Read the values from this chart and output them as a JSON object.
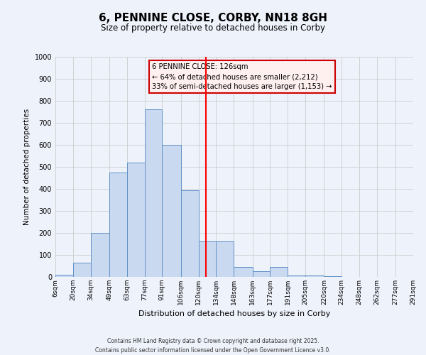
{
  "title": "6, PENNINE CLOSE, CORBY, NN18 8GH",
  "subtitle": "Size of property relative to detached houses in Corby",
  "xlabel": "Distribution of detached houses by size in Corby",
  "ylabel": "Number of detached properties",
  "bin_edges": [
    6,
    20,
    34,
    49,
    63,
    77,
    91,
    106,
    120,
    134,
    148,
    163,
    177,
    191,
    205,
    220,
    234,
    248,
    262,
    277,
    291
  ],
  "bar_heights": [
    10,
    65,
    200,
    475,
    520,
    760,
    600,
    395,
    160,
    160,
    45,
    25,
    45,
    5,
    5,
    2,
    0,
    0,
    0,
    0
  ],
  "bar_facecolor": "#c9d9f0",
  "bar_edgecolor": "#6090c8",
  "tick_labels": [
    "6sqm",
    "20sqm",
    "34sqm",
    "49sqm",
    "63sqm",
    "77sqm",
    "91sqm",
    "106sqm",
    "120sqm",
    "134sqm",
    "148sqm",
    "163sqm",
    "177sqm",
    "191sqm",
    "205sqm",
    "220sqm",
    "234sqm",
    "248sqm",
    "262sqm",
    "277sqm",
    "291sqm"
  ],
  "vline_x": 126,
  "vline_color": "red",
  "ylim": [
    0,
    1000
  ],
  "yticks": [
    0,
    100,
    200,
    300,
    400,
    500,
    600,
    700,
    800,
    900,
    1000
  ],
  "annotation_title": "6 PENNINE CLOSE: 126sqm",
  "annotation_line1": "← 64% of detached houses are smaller (2,212)",
  "annotation_line2": "33% of semi-detached houses are larger (1,153) →",
  "annotation_box_facecolor": "#fff0f0",
  "annotation_box_edgecolor": "#cc0000",
  "grid_color": "#cccccc",
  "bg_color": "#eef2fb",
  "footer1": "Contains HM Land Registry data © Crown copyright and database right 2025.",
  "footer2": "Contains public sector information licensed under the Open Government Licence v3.0."
}
